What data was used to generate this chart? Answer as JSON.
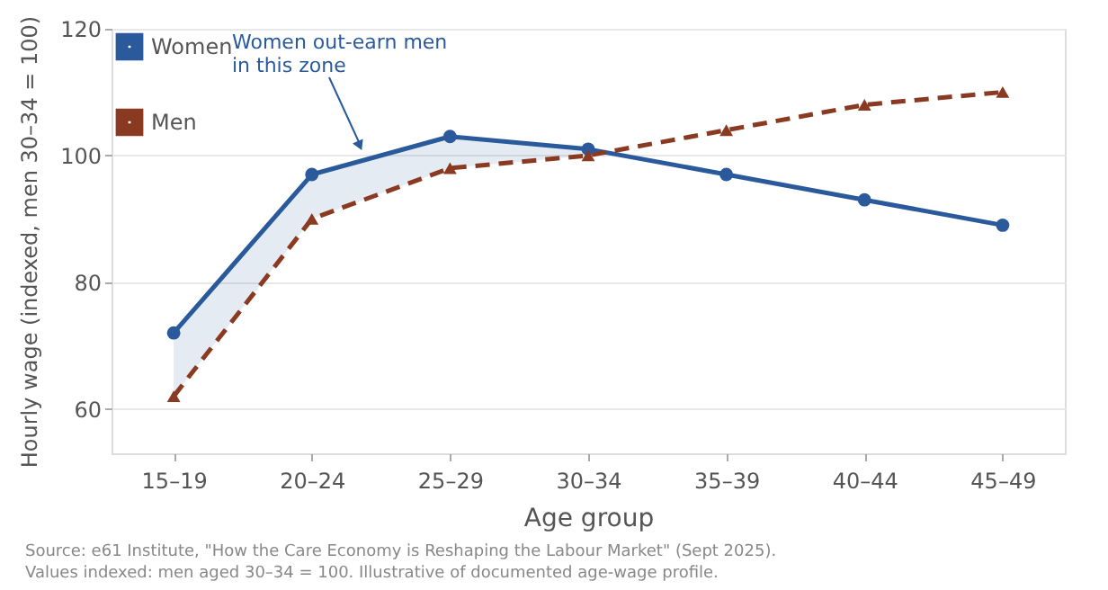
{
  "chart_data": {
    "type": "line",
    "xlabel": "Age group",
    "ylabel": "Hourly wage (indexed, men 30–34 = 100)",
    "categories": [
      "15–19",
      "20–24",
      "25–29",
      "30–34",
      "35–39",
      "40–44",
      "45–49"
    ],
    "series": [
      {
        "name": "Women",
        "color": "#2a5a9b",
        "marker": "circle",
        "line_style": "solid",
        "values": [
          72,
          97,
          103,
          101,
          97,
          93,
          89
        ],
        "lower": [
          62,
          90,
          98,
          100,
          null,
          null,
          null
        ],
        "upper": [
          72,
          97,
          103,
          101,
          null,
          null,
          null
        ]
      },
      {
        "name": "Men",
        "color": "#8b3a22",
        "marker": "triangle",
        "line_style": "dashed",
        "values": [
          62,
          90,
          98,
          100,
          104,
          108,
          110
        ]
      }
    ],
    "ylim": [
      53,
      120
    ],
    "yticks": [
      60,
      80,
      100,
      120
    ],
    "grid": "y",
    "legend": "top left",
    "annotations": [
      "Women out-earn men\nin this zone",
      "Source: e61 Institute, \"How the Care Economy is Reshaping the Labour Market\" (Sept 2025).",
      "Values indexed: men aged 30–34 = 100. Illustrative of documented age-wage profile."
    ]
  }
}
